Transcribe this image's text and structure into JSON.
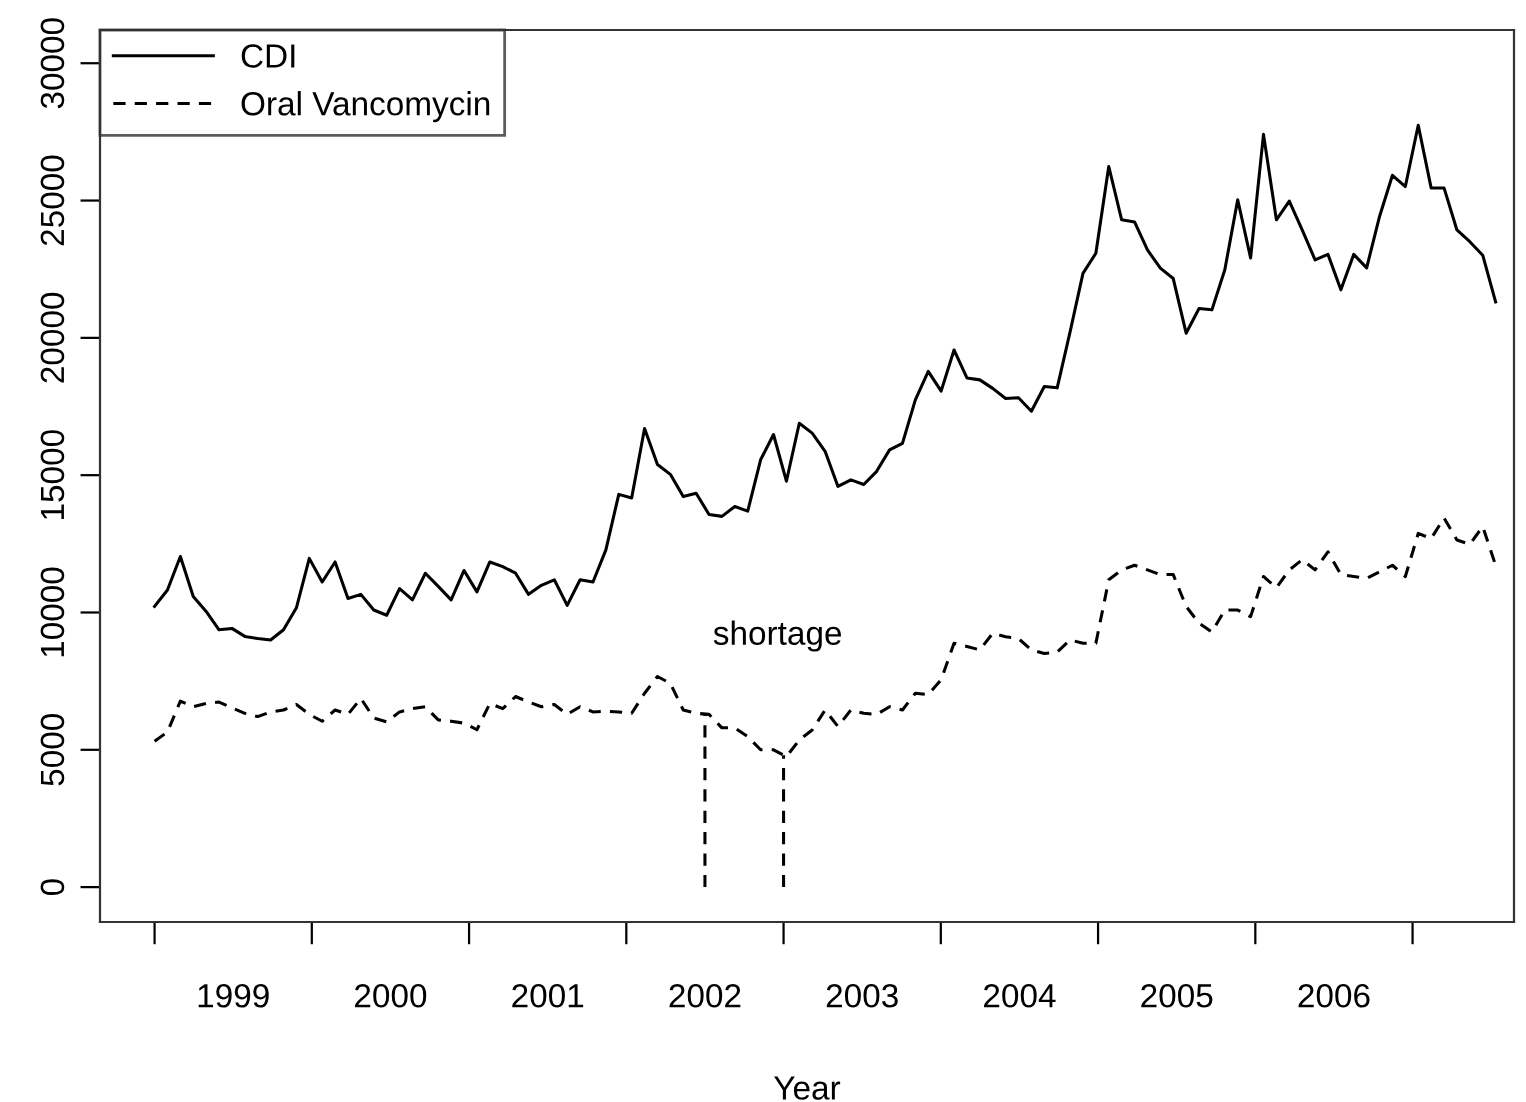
{
  "chart_data": {
    "type": "line",
    "xlabel": "Year",
    "x": [
      1999,
      1999.082,
      1999.164,
      1999.246,
      1999.328,
      1999.41,
      1999.492,
      1999.574,
      1999.656,
      1999.738,
      1999.82,
      1999.902,
      1999.984,
      2000.066,
      2000.148,
      2000.23,
      2000.312,
      2000.394,
      2000.476,
      2000.558,
      2000.64,
      2000.722,
      2000.804,
      2000.886,
      2000.968,
      2001.05,
      2001.132,
      2001.214,
      2001.296,
      2001.378,
      2001.46,
      2001.542,
      2001.624,
      2001.706,
      2001.788,
      2001.87,
      2001.952,
      2002.034,
      2002.116,
      2002.198,
      2002.28,
      2002.362,
      2002.444,
      2002.526,
      2002.608,
      2002.69,
      2002.772,
      2002.854,
      2002.936,
      2003.018,
      2003.1,
      2003.182,
      2003.264,
      2003.346,
      2003.428,
      2003.51,
      2003.592,
      2003.674,
      2003.756,
      2003.838,
      2003.92,
      2004.002,
      2004.084,
      2004.166,
      2004.248,
      2004.33,
      2004.412,
      2004.494,
      2004.576,
      2004.658,
      2004.74,
      2004.822,
      2004.904,
      2004.986,
      2005.068,
      2005.15,
      2005.232,
      2005.314,
      2005.396,
      2005.478,
      2005.56,
      2005.642,
      2005.724,
      2005.806,
      2005.888,
      2005.97,
      2006.052,
      2006.134,
      2006.216,
      2006.298,
      2006.38,
      2006.462,
      2006.544,
      2006.626,
      2006.708,
      2006.79,
      2006.872,
      2006.954,
      2007.036,
      2007.118,
      2007.2,
      2007.282,
      2007.364,
      2007.446,
      2007.528
    ],
    "series": [
      {
        "name": "CDI",
        "color": "#000000",
        "line_style": "solid",
        "values": [
          10220,
          10820,
          12040,
          10580,
          10040,
          9370,
          9420,
          9130,
          9050,
          9000,
          9370,
          10170,
          11970,
          11110,
          11840,
          10510,
          10660,
          10090,
          9900,
          10870,
          10460,
          11430,
          10950,
          10460,
          11530,
          10750,
          11840,
          11670,
          11430,
          10660,
          10990,
          11190,
          10260,
          11190,
          11110,
          12280,
          14300,
          14170,
          16700,
          15390,
          15030,
          14220,
          14340,
          13570,
          13500,
          13860,
          13690,
          15560,
          16480,
          14780,
          16890,
          16530,
          15870,
          14590,
          14830,
          14660,
          15140,
          15920,
          16160,
          17740,
          18780,
          18060,
          19560,
          18540,
          18470,
          18160,
          17790,
          17820,
          17330,
          18230,
          18180,
          20220,
          22350,
          23080,
          26240,
          24300,
          24220,
          23200,
          22540,
          22160,
          20170,
          21070,
          21020,
          22480,
          25030,
          22910,
          27410,
          24300,
          24980,
          23930,
          22840,
          23040,
          21750,
          23040,
          22550,
          24420,
          25920,
          25510,
          27740,
          25460,
          25460,
          23930,
          23500,
          23010,
          21310
        ]
      },
      {
        "name": "Oral Vancomycin",
        "color": "#000000",
        "line_style": "dashed",
        "values": [
          5310,
          5650,
          6770,
          6570,
          6690,
          6740,
          6530,
          6330,
          6210,
          6380,
          6450,
          6650,
          6290,
          6040,
          6450,
          6290,
          6870,
          6160,
          6020,
          6380,
          6500,
          6570,
          6090,
          6040,
          5970,
          5730,
          6690,
          6500,
          6940,
          6740,
          6570,
          6650,
          6290,
          6570,
          6380,
          6400,
          6380,
          6330,
          7060,
          7670,
          7420,
          6450,
          6330,
          6290,
          5800,
          5800,
          5480,
          5000,
          5000,
          4750,
          5360,
          5720,
          6450,
          5850,
          6450,
          6330,
          6290,
          6570,
          6450,
          7060,
          7010,
          7550,
          8880,
          8760,
          8640,
          9240,
          9120,
          9050,
          8640,
          8510,
          8560,
          9000,
          8880,
          8880,
          11190,
          11550,
          11720,
          11550,
          11380,
          11380,
          10220,
          9610,
          9290,
          10090,
          10090,
          9850,
          11310,
          10900,
          11550,
          11920,
          11550,
          12210,
          11380,
          11310,
          11240,
          11480,
          11720,
          11310,
          12880,
          12690,
          13440,
          12640,
          12480,
          13130,
          11720
        ]
      }
    ],
    "ref_lines": [
      {
        "axis": "x",
        "value": 2002.5,
        "color": "#000000",
        "line_style": "dashed"
      },
      {
        "axis": "x",
        "value": 2003,
        "color": "#000000",
        "line_style": "dashed"
      }
    ],
    "annotations": [
      "shortage"
    ],
    "xlim": [
      1998.653,
      2007.645
    ],
    "ylim": [
      -1270,
      31210
    ],
    "xticks": [
      {
        "value": 1999,
        "label": null
      },
      {
        "value": 1999.5,
        "label": "1999"
      },
      {
        "value": 2000,
        "label": null
      },
      {
        "value": 2000.5,
        "label": "2000"
      },
      {
        "value": 2001,
        "label": null
      },
      {
        "value": 2001.5,
        "label": "2001"
      },
      {
        "value": 2002,
        "label": null
      },
      {
        "value": 2002.5,
        "label": "2002"
      },
      {
        "value": 2003,
        "label": null
      },
      {
        "value": 2003.5,
        "label": "2003"
      },
      {
        "value": 2004,
        "label": null
      },
      {
        "value": 2004.5,
        "label": "2004"
      },
      {
        "value": 2005,
        "label": null
      },
      {
        "value": 2005.5,
        "label": "2005"
      },
      {
        "value": 2006,
        "label": null
      },
      {
        "value": 2006.5,
        "label": "2006"
      },
      {
        "value": 2007,
        "label": null
      }
    ],
    "yticks": [
      0,
      5000,
      10000,
      15000,
      20000,
      25000,
      30000
    ],
    "grid": false,
    "legend": "top left"
  }
}
